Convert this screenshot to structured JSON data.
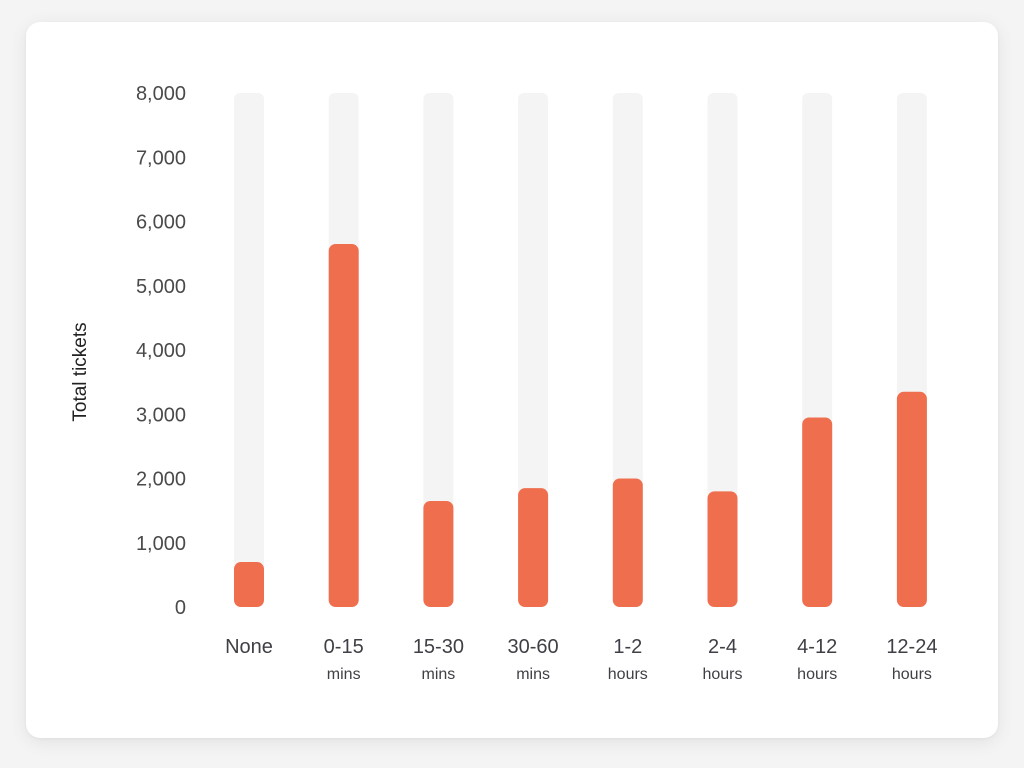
{
  "chart_data": {
    "type": "bar",
    "ylabel": "Total tickets",
    "xlabel": "",
    "ylim": [
      0,
      8000
    ],
    "yticks": [
      0,
      1000,
      2000,
      3000,
      4000,
      5000,
      6000,
      7000,
      8000
    ],
    "ytick_labels": [
      "0",
      "1,000",
      "2,000",
      "3,000",
      "4,000",
      "5,000",
      "6,000",
      "7,000",
      "8,000"
    ],
    "categories": [
      {
        "label": "None",
        "sublabel": ""
      },
      {
        "label": "0-15",
        "sublabel": "mins"
      },
      {
        "label": "15-30",
        "sublabel": "mins"
      },
      {
        "label": "30-60",
        "sublabel": "mins"
      },
      {
        "label": "1-2",
        "sublabel": "hours"
      },
      {
        "label": "2-4",
        "sublabel": "hours"
      },
      {
        "label": "4-12",
        "sublabel": "hours"
      },
      {
        "label": "12-24",
        "sublabel": "hours"
      }
    ],
    "values": [
      700,
      5650,
      1650,
      1850,
      2000,
      1800,
      2950,
      3350
    ],
    "bar_color": "#ef6e4e",
    "track_color": "#f4f4f4",
    "grid": false,
    "legend": "none"
  }
}
